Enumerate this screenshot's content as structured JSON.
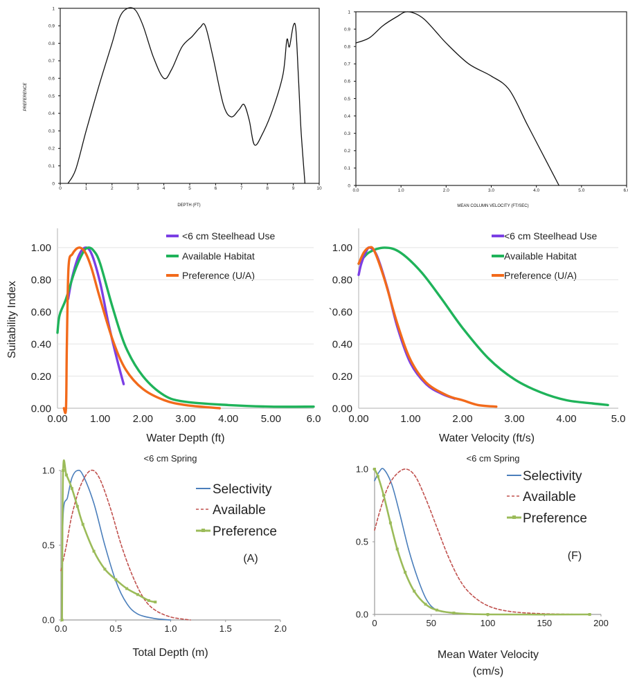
{
  "colors": {
    "purple": "#7b3fe4",
    "green": "#1fb35a",
    "orange": "#f26a1b",
    "blue": "#4a7ebb",
    "red": "#c0504d",
    "lightgreen": "#9bbb59",
    "black": "#111111"
  },
  "chart_data": [
    {
      "type": "line",
      "id": "p1",
      "xlabel": "DEPTH (FT)",
      "ylabel": "PREFERENCE",
      "xlim": [
        0,
        10
      ],
      "ylim": [
        0,
        1
      ],
      "xticks": [
        "0",
        "1",
        "2",
        "3",
        "4",
        "5",
        "6",
        "7",
        "8",
        "9",
        "10"
      ],
      "yticks": [
        "0",
        "0.1",
        "0.2",
        "0.3",
        "0.4",
        "0.5",
        "0.6",
        "0.7",
        "0.8",
        "0.9",
        "1"
      ],
      "series": [
        {
          "color": "black",
          "points": [
            [
              0.3,
              0
            ],
            [
              0.6,
              0.08
            ],
            [
              1.0,
              0.3
            ],
            [
              1.5,
              0.56
            ],
            [
              2.0,
              0.8
            ],
            [
              2.3,
              0.95
            ],
            [
              2.6,
              1.0
            ],
            [
              2.9,
              0.99
            ],
            [
              3.2,
              0.9
            ],
            [
              3.6,
              0.72
            ],
            [
              4.0,
              0.6
            ],
            [
              4.3,
              0.65
            ],
            [
              4.7,
              0.78
            ],
            [
              5.1,
              0.84
            ],
            [
              5.4,
              0.89
            ],
            [
              5.6,
              0.9
            ],
            [
              5.9,
              0.72
            ],
            [
              6.3,
              0.45
            ],
            [
              6.6,
              0.38
            ],
            [
              6.9,
              0.42
            ],
            [
              7.1,
              0.45
            ],
            [
              7.3,
              0.36
            ],
            [
              7.5,
              0.22
            ],
            [
              7.8,
              0.28
            ],
            [
              8.2,
              0.42
            ],
            [
              8.6,
              0.62
            ],
            [
              8.75,
              0.82
            ],
            [
              8.85,
              0.78
            ],
            [
              9.0,
              0.9
            ],
            [
              9.1,
              0.88
            ],
            [
              9.2,
              0.6
            ],
            [
              9.3,
              0.3
            ],
            [
              9.45,
              0
            ]
          ]
        }
      ]
    },
    {
      "type": "line",
      "id": "p2",
      "xlabel": "MEAN COLUMN VELOCITY (FT/SEC)",
      "xlim": [
        0,
        6
      ],
      "ylim": [
        0,
        1
      ],
      "xticks": [
        "0.0",
        "1.0",
        "2.0",
        "3.0",
        "4.0",
        "5.0",
        "6.0"
      ],
      "yticks": [
        "0",
        "0.1",
        "0.2",
        "0.3",
        "0.4",
        "0.5",
        "0.6",
        "0.7",
        "0.8",
        "0.9",
        "1"
      ],
      "series": [
        {
          "color": "black",
          "points": [
            [
              0,
              0.82
            ],
            [
              0.3,
              0.85
            ],
            [
              0.6,
              0.92
            ],
            [
              0.9,
              0.97
            ],
            [
              1.15,
              1.0
            ],
            [
              1.5,
              0.96
            ],
            [
              2.0,
              0.82
            ],
            [
              2.5,
              0.7
            ],
            [
              3.0,
              0.63
            ],
            [
              3.4,
              0.55
            ],
            [
              3.8,
              0.35
            ],
            [
              4.2,
              0.15
            ],
            [
              4.5,
              0
            ]
          ]
        }
      ]
    },
    {
      "type": "line",
      "id": "p3",
      "xlabel": "Water Depth (ft)",
      "ylabel": "Suitability Index",
      "xlim": [
        0,
        6
      ],
      "ylim": [
        0,
        1.12
      ],
      "xticks": [
        "0.00",
        "1.00",
        "2.00",
        "3.00",
        "4.00",
        "5.00",
        "6.0"
      ],
      "yticks": [
        "0.00",
        "0.20",
        "0.40",
        "0.60",
        "0.80",
        "1.00"
      ],
      "legend": [
        "<6 cm Steelhead Use",
        "Available Habitat",
        "Preference (U/A)"
      ],
      "series": [
        {
          "name": "<6 cm Steelhead Use",
          "color": "purple",
          "points": [
            [
              0.25,
              0.68
            ],
            [
              0.35,
              0.82
            ],
            [
              0.5,
              0.95
            ],
            [
              0.65,
              1.0
            ],
            [
              0.8,
              0.96
            ],
            [
              1.0,
              0.78
            ],
            [
              1.2,
              0.52
            ],
            [
              1.4,
              0.3
            ],
            [
              1.55,
              0.15
            ]
          ]
        },
        {
          "name": "Available Habitat",
          "color": "green",
          "points": [
            [
              0,
              0.47
            ],
            [
              0.05,
              0.58
            ],
            [
              0.2,
              0.68
            ],
            [
              0.4,
              0.85
            ],
            [
              0.6,
              0.97
            ],
            [
              0.72,
              1.0
            ],
            [
              0.85,
              0.98
            ],
            [
              1.0,
              0.9
            ],
            [
              1.3,
              0.62
            ],
            [
              1.6,
              0.38
            ],
            [
              2.0,
              0.2
            ],
            [
              2.5,
              0.08
            ],
            [
              3.0,
              0.04
            ],
            [
              4.0,
              0.02
            ],
            [
              5.0,
              0.01
            ],
            [
              6.0,
              0.01
            ]
          ]
        },
        {
          "name": "Preference (U/A)",
          "color": "orange",
          "points": [
            [
              0.15,
              0
            ],
            [
              0.2,
              0
            ],
            [
              0.22,
              0.4
            ],
            [
              0.26,
              0.88
            ],
            [
              0.35,
              0.96
            ],
            [
              0.5,
              1.0
            ],
            [
              0.65,
              0.97
            ],
            [
              0.8,
              0.87
            ],
            [
              1.0,
              0.68
            ],
            [
              1.3,
              0.42
            ],
            [
              1.6,
              0.24
            ],
            [
              2.0,
              0.12
            ],
            [
              2.5,
              0.05
            ],
            [
              3.0,
              0.02
            ],
            [
              3.8,
              0
            ]
          ]
        }
      ]
    },
    {
      "type": "line",
      "id": "p4",
      "xlabel": "Water Velocity (ft/s)",
      "xlim": [
        0,
        5
      ],
      "ylim": [
        0,
        1.12
      ],
      "xticks": [
        "0.00",
        "1.00",
        "2.00",
        "3.00",
        "4.00",
        "5.0"
      ],
      "yticks": [
        "0.00",
        "0.20",
        "0.40",
        "0.60",
        "0.80",
        "1.00"
      ],
      "ytick_prefix": "`",
      "legend": [
        "<6 cm Steelhead Use",
        "Available Habitat",
        "Preference (U/A)"
      ],
      "series": [
        {
          "name": "Available Habitat",
          "color": "green",
          "points": [
            [
              0,
              0.9
            ],
            [
              0.2,
              0.97
            ],
            [
              0.5,
              1.0
            ],
            [
              0.8,
              0.97
            ],
            [
              1.2,
              0.85
            ],
            [
              1.6,
              0.68
            ],
            [
              2.0,
              0.5
            ],
            [
              2.5,
              0.31
            ],
            [
              3.0,
              0.18
            ],
            [
              3.5,
              0.1
            ],
            [
              4.0,
              0.05
            ],
            [
              4.5,
              0.03
            ],
            [
              4.8,
              0.02
            ]
          ]
        },
        {
          "name": "<6 cm Steelhead Use",
          "color": "purple",
          "points": [
            [
              0,
              0.83
            ],
            [
              0.05,
              0.9
            ],
            [
              0.15,
              0.98
            ],
            [
              0.22,
              1.0
            ],
            [
              0.35,
              0.95
            ],
            [
              0.55,
              0.75
            ],
            [
              0.75,
              0.5
            ],
            [
              1.0,
              0.28
            ],
            [
              1.3,
              0.15
            ],
            [
              1.6,
              0.09
            ],
            [
              1.85,
              0.06
            ]
          ]
        },
        {
          "name": "Preference (U/A)",
          "color": "orange",
          "points": [
            [
              0,
              0.9
            ],
            [
              0.1,
              0.97
            ],
            [
              0.2,
              1.0
            ],
            [
              0.3,
              0.98
            ],
            [
              0.5,
              0.8
            ],
            [
              0.75,
              0.52
            ],
            [
              1.0,
              0.3
            ],
            [
              1.3,
              0.16
            ],
            [
              1.7,
              0.08
            ],
            [
              2.0,
              0.05
            ],
            [
              2.3,
              0.02
            ],
            [
              2.65,
              0.01
            ]
          ]
        }
      ]
    },
    {
      "type": "line",
      "id": "p5",
      "title": "<6 cm Spring",
      "xlabel": "Total Depth (m)",
      "xlim": [
        0,
        2
      ],
      "ylim": [
        0,
        1
      ],
      "xticks": [
        "0.0",
        "0.5",
        "1.0",
        "1.5",
        "2.0"
      ],
      "yticks": [
        "0.0",
        "0.5",
        "1.0"
      ],
      "legend": [
        "Selectivity",
        "Available",
        "Preference"
      ],
      "annotation": "(A)",
      "series": [
        {
          "name": "Selectivity",
          "color": "blue",
          "dash": "none",
          "points": [
            [
              0.01,
              0
            ],
            [
              0.02,
              0.7
            ],
            [
              0.06,
              0.82
            ],
            [
              0.1,
              0.95
            ],
            [
              0.15,
              1.0
            ],
            [
              0.2,
              0.97
            ],
            [
              0.3,
              0.78
            ],
            [
              0.4,
              0.5
            ],
            [
              0.5,
              0.26
            ],
            [
              0.6,
              0.11
            ],
            [
              0.7,
              0.04
            ],
            [
              0.85,
              0.01
            ],
            [
              1.0,
              0
            ]
          ]
        },
        {
          "name": "Available",
          "color": "red",
          "dash": "4,3",
          "points": [
            [
              0,
              0.33
            ],
            [
              0.05,
              0.5
            ],
            [
              0.1,
              0.7
            ],
            [
              0.18,
              0.9
            ],
            [
              0.27,
              1.0
            ],
            [
              0.35,
              0.95
            ],
            [
              0.45,
              0.75
            ],
            [
              0.55,
              0.5
            ],
            [
              0.65,
              0.3
            ],
            [
              0.75,
              0.15
            ],
            [
              0.85,
              0.07
            ],
            [
              1.0,
              0.02
            ],
            [
              1.18,
              0
            ]
          ]
        },
        {
          "name": "Preference",
          "color": "lightgreen",
          "dash": "none",
          "marker": true,
          "points": [
            [
              0.01,
              0
            ],
            [
              0.02,
              1.0
            ],
            [
              0.05,
              0.97
            ],
            [
              0.1,
              0.88
            ],
            [
              0.15,
              0.76
            ],
            [
              0.2,
              0.64
            ],
            [
              0.3,
              0.46
            ],
            [
              0.4,
              0.34
            ],
            [
              0.5,
              0.27
            ],
            [
              0.6,
              0.21
            ],
            [
              0.7,
              0.17
            ],
            [
              0.8,
              0.13
            ],
            [
              0.86,
              0.12
            ]
          ]
        }
      ]
    },
    {
      "type": "line",
      "id": "p6",
      "title": "<6 cm Spring",
      "xlabel": "Mean Water Velocity",
      "xlabel2": "(cm/s)",
      "xlim": [
        0,
        200
      ],
      "ylim": [
        0,
        1
      ],
      "xticks": [
        "0",
        "50",
        "100",
        "150",
        "200"
      ],
      "yticks": [
        "0.0",
        "0.5",
        "1.0"
      ],
      "legend": [
        "Selectivity",
        "Available",
        "Preference"
      ],
      "annotation": "(F)",
      "series": [
        {
          "name": "Selectivity",
          "color": "blue",
          "dash": "none",
          "points": [
            [
              0,
              0.92
            ],
            [
              4,
              0.98
            ],
            [
              8,
              1.0
            ],
            [
              15,
              0.9
            ],
            [
              22,
              0.7
            ],
            [
              30,
              0.45
            ],
            [
              38,
              0.25
            ],
            [
              46,
              0.1
            ],
            [
              55,
              0.03
            ],
            [
              70,
              0.01
            ],
            [
              90,
              0
            ]
          ]
        },
        {
          "name": "Available",
          "color": "red",
          "dash": "4,3",
          "points": [
            [
              0,
              0.58
            ],
            [
              5,
              0.72
            ],
            [
              12,
              0.88
            ],
            [
              20,
              0.97
            ],
            [
              28,
              1.0
            ],
            [
              36,
              0.95
            ],
            [
              45,
              0.8
            ],
            [
              55,
              0.6
            ],
            [
              65,
              0.4
            ],
            [
              75,
              0.24
            ],
            [
              85,
              0.14
            ],
            [
              100,
              0.06
            ],
            [
              120,
              0.02
            ],
            [
              150,
              0.005
            ],
            [
              190,
              0
            ]
          ]
        },
        {
          "name": "Preference",
          "color": "lightgreen",
          "dash": "none",
          "marker": true,
          "points": [
            [
              0,
              1.0
            ],
            [
              3,
              0.95
            ],
            [
              8,
              0.82
            ],
            [
              14,
              0.63
            ],
            [
              20,
              0.45
            ],
            [
              27,
              0.29
            ],
            [
              35,
              0.16
            ],
            [
              45,
              0.07
            ],
            [
              55,
              0.03
            ],
            [
              70,
              0.01
            ],
            [
              100,
              0
            ],
            [
              190,
              0
            ]
          ]
        }
      ]
    }
  ]
}
